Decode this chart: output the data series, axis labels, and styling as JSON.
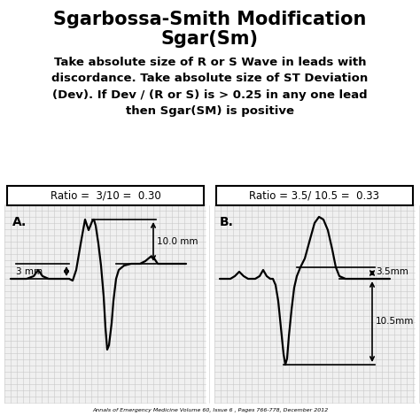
{
  "bg_color": "#ffffff",
  "grid_color": "#c8c8c8",
  "ecg_panel_bg": "#f0f0f0",
  "title1": "Sgarbossa-Smith Modification",
  "title2": "Sgar(Sm)",
  "body_text": "Take absolute size of R or S Wave in leads with\ndiscordance. Take absolute size of ST Deviation\n(Dev). If Dev / (R or S) is > 0.25 in any one lead\nthen Sgar(SM) is positive",
  "footnote": "Annals of Emergency Medicine Volume 60, Issue 6 , Pages 766-778, December 2012",
  "label_A": "A.",
  "label_B": "B.",
  "ratio_A": "Ratio =  3/10 =  0.30",
  "ratio_B": "Ratio = 3.5/ 10.5 =  0.33",
  "ann_A_top": "10.0 mm",
  "ann_A_bot": "3 mm",
  "ann_B_top": "3.5mm",
  "ann_B_bot": "10.5mm",
  "figsize": [
    4.74,
    4.7
  ],
  "dpi": 100
}
